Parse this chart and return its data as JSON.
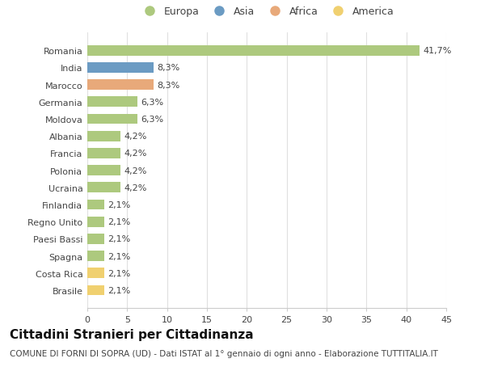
{
  "countries": [
    "Romania",
    "India",
    "Marocco",
    "Germania",
    "Moldova",
    "Albania",
    "Francia",
    "Polonia",
    "Ucraina",
    "Finlandia",
    "Regno Unito",
    "Paesi Bassi",
    "Spagna",
    "Costa Rica",
    "Brasile"
  ],
  "values": [
    41.7,
    8.3,
    8.3,
    6.3,
    6.3,
    4.2,
    4.2,
    4.2,
    4.2,
    2.1,
    2.1,
    2.1,
    2.1,
    2.1,
    2.1
  ],
  "labels": [
    "41,7%",
    "8,3%",
    "8,3%",
    "6,3%",
    "6,3%",
    "4,2%",
    "4,2%",
    "4,2%",
    "4,2%",
    "2,1%",
    "2,1%",
    "2,1%",
    "2,1%",
    "2,1%",
    "2,1%"
  ],
  "regions": [
    "Europa",
    "Asia",
    "Africa",
    "Europa",
    "Europa",
    "Europa",
    "Europa",
    "Europa",
    "Europa",
    "Europa",
    "Europa",
    "Europa",
    "Europa",
    "America",
    "America"
  ],
  "colors": {
    "Europa": "#adc97e",
    "Asia": "#6b9bc3",
    "Africa": "#e8a97a",
    "America": "#f0d070"
  },
  "legend_order": [
    "Europa",
    "Asia",
    "Africa",
    "America"
  ],
  "xlim": [
    0,
    45
  ],
  "xticks": [
    0,
    5,
    10,
    15,
    20,
    25,
    30,
    35,
    40,
    45
  ],
  "title": "Cittadini Stranieri per Cittadinanza",
  "subtitle": "COMUNE DI FORNI DI SOPRA (UD) - Dati ISTAT al 1° gennaio di ogni anno - Elaborazione TUTTITALIA.IT",
  "background_color": "#ffffff",
  "bar_height": 0.6,
  "title_fontsize": 11,
  "subtitle_fontsize": 7.5,
  "label_fontsize": 8,
  "tick_fontsize": 8,
  "legend_fontsize": 9
}
